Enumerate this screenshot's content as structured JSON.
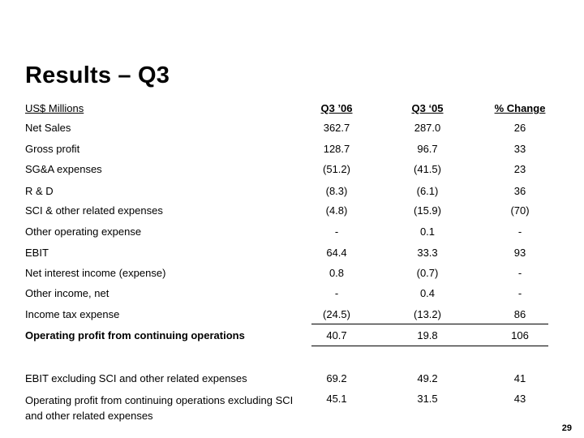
{
  "title": "Results – Q3",
  "header": {
    "units": "US$ Millions",
    "col1": "Q3 ’06",
    "col2": "Q3 ‘05",
    "col3": "% Change"
  },
  "rows": [
    {
      "label": "Net Sales",
      "q3_06": "362.7",
      "q3_05": "287.0",
      "change": "26"
    },
    {
      "label": "Gross profit",
      "q3_06": "128.7",
      "q3_05": "96.7",
      "change": "33"
    },
    {
      "label": "SG&A expenses",
      "q3_06": "(51.2)",
      "q3_05": "(41.5)",
      "change": "23"
    },
    {
      "label": "R & D",
      "q3_06": "(8.3)",
      "q3_05": "(6.1)",
      "change": "36"
    },
    {
      "label": "SCI & other related expenses",
      "q3_06": "(4.8)",
      "q3_05": "(15.9)",
      "change": "(70)"
    },
    {
      "label": "Other operating expense",
      "q3_06": "-",
      "q3_05": "0.1",
      "change": "-"
    },
    {
      "label": "EBIT",
      "q3_06": "64.4",
      "q3_05": "33.3",
      "change": "93"
    },
    {
      "label": "Net interest income (expense)",
      "q3_06": "0.8",
      "q3_05": "(0.7)",
      "change": "-"
    },
    {
      "label": "Other income, net",
      "q3_06": "-",
      "q3_05": "0.4",
      "change": "-"
    },
    {
      "label": "Income tax expense",
      "q3_06": "(24.5)",
      "q3_05": "(13.2)",
      "change": "86"
    }
  ],
  "total_row": {
    "label": "Operating profit from continuing operations",
    "q3_06": "40.7",
    "q3_05": "19.8",
    "change": "106"
  },
  "extra_rows": [
    {
      "label": "EBIT excluding SCI and other related expenses",
      "q3_06": "69.2",
      "q3_05": "49.2",
      "change": "41"
    },
    {
      "label": "Operating profit from continuing operations excluding SCI and other related expenses",
      "q3_06": "45.1",
      "q3_05": "31.5",
      "change": "43"
    }
  ],
  "page_number": "29"
}
